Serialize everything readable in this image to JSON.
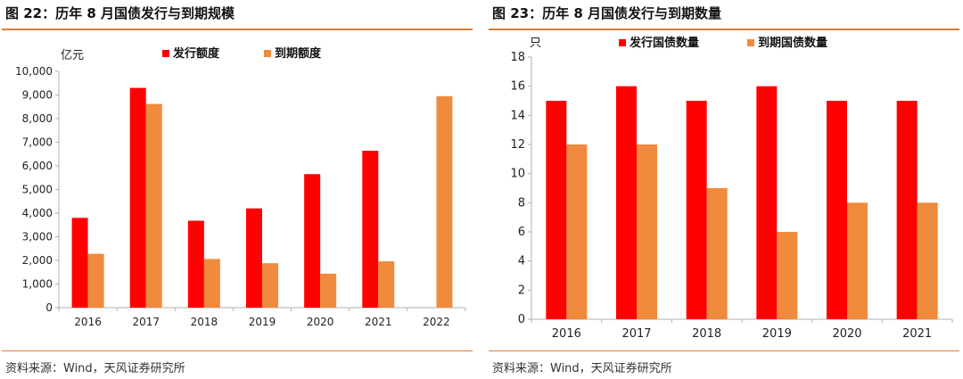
{
  "colors": {
    "red": "#ff0000",
    "orange": "#f08a3c",
    "accent_rule": "#e07b39",
    "axis": "#b0b0b0"
  },
  "chart_data": [
    {
      "type": "bar",
      "title": "图 22：历年 8 月国债发行与到期规模",
      "unit_label": "亿元",
      "categories": [
        "2016",
        "2017",
        "2018",
        "2019",
        "2020",
        "2021",
        "2022"
      ],
      "series": [
        {
          "name": "发行额度",
          "color": "#ff0000",
          "values": [
            3800,
            9300,
            3680,
            4200,
            5650,
            6640,
            null
          ]
        },
        {
          "name": "到期额度",
          "color": "#f08a3c",
          "values": [
            2280,
            8620,
            2060,
            1880,
            1440,
            1960,
            8950
          ]
        }
      ],
      "ylim": [
        0,
        10000
      ],
      "yticks": [
        "0",
        "1,000",
        "2,000",
        "3,000",
        "4,000",
        "5,000",
        "6,000",
        "7,000",
        "8,000",
        "9,000",
        "10,000"
      ],
      "legend": "top",
      "grid": false,
      "source": "资料来源：Wind，天风证券研究所"
    },
    {
      "type": "bar",
      "title": "图 23：历年 8 月国债发行与到期数量",
      "unit_label": "只",
      "categories": [
        "2016",
        "2017",
        "2018",
        "2019",
        "2020",
        "2021"
      ],
      "series": [
        {
          "name": "发行国债数量",
          "color": "#ff0000",
          "values": [
            15,
            16,
            15,
            16,
            15,
            15
          ]
        },
        {
          "name": "到期国债数量",
          "color": "#f08a3c",
          "values": [
            12,
            12,
            9,
            6,
            8,
            8
          ]
        }
      ],
      "ylim": [
        0,
        18
      ],
      "yticks": [
        "0",
        "2",
        "4",
        "6",
        "8",
        "10",
        "12",
        "14",
        "16",
        "18"
      ],
      "legend": "top",
      "grid": false,
      "source": "资料来源：Wind，天风证券研究所"
    }
  ]
}
